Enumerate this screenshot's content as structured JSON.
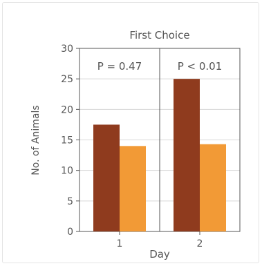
{
  "chart_data": {
    "type": "bar",
    "title": "First Choice",
    "xlabel": "Day",
    "ylabel": "No. of Animals",
    "categories": [
      "1",
      "2"
    ],
    "ylim": [
      0,
      30
    ],
    "yticks": [
      "0",
      "5",
      "10",
      "15",
      "20",
      "25",
      "30"
    ],
    "series": [
      {
        "values": [
          17.5,
          25
        ],
        "color": "#8f3b1e"
      },
      {
        "values": [
          14,
          14.3
        ],
        "color": "#f29a36"
      }
    ],
    "annotations": [
      "P = 0.47",
      "P < 0.01"
    ],
    "grid": true,
    "legend": "none"
  }
}
